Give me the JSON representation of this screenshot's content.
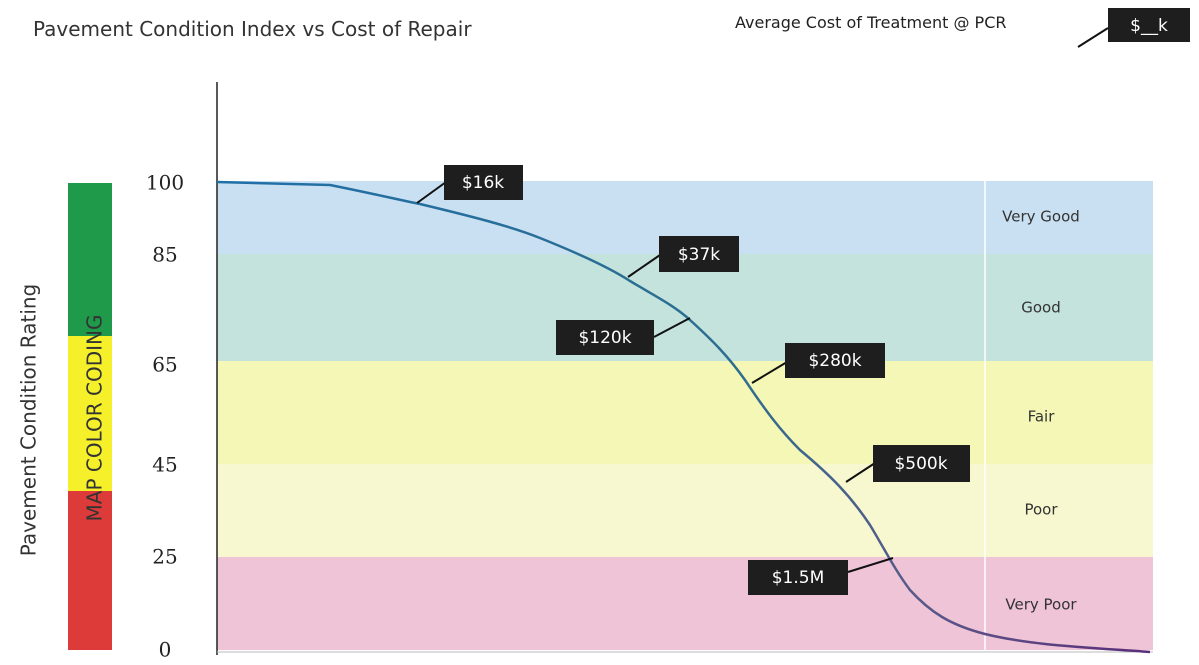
{
  "header": {
    "title": "Pavement Condition Index  vs Cost of Repair",
    "note": "Average Cost of Treatment @ PCR",
    "note_box": "$__k"
  },
  "y_axis": {
    "title": "Pavement Condition Rating",
    "ticks": [
      "100",
      "85",
      "65",
      "45",
      "25",
      "0"
    ]
  },
  "color_bar": {
    "label": "MAP COLOR CODING"
  },
  "bands": [
    "Very Good",
    "Good",
    "Fair",
    "Poor",
    "Very Poor"
  ],
  "costs": [
    "$16k",
    "$37k",
    "$120k",
    "$280k",
    "$500k",
    "$1.5M"
  ]
}
